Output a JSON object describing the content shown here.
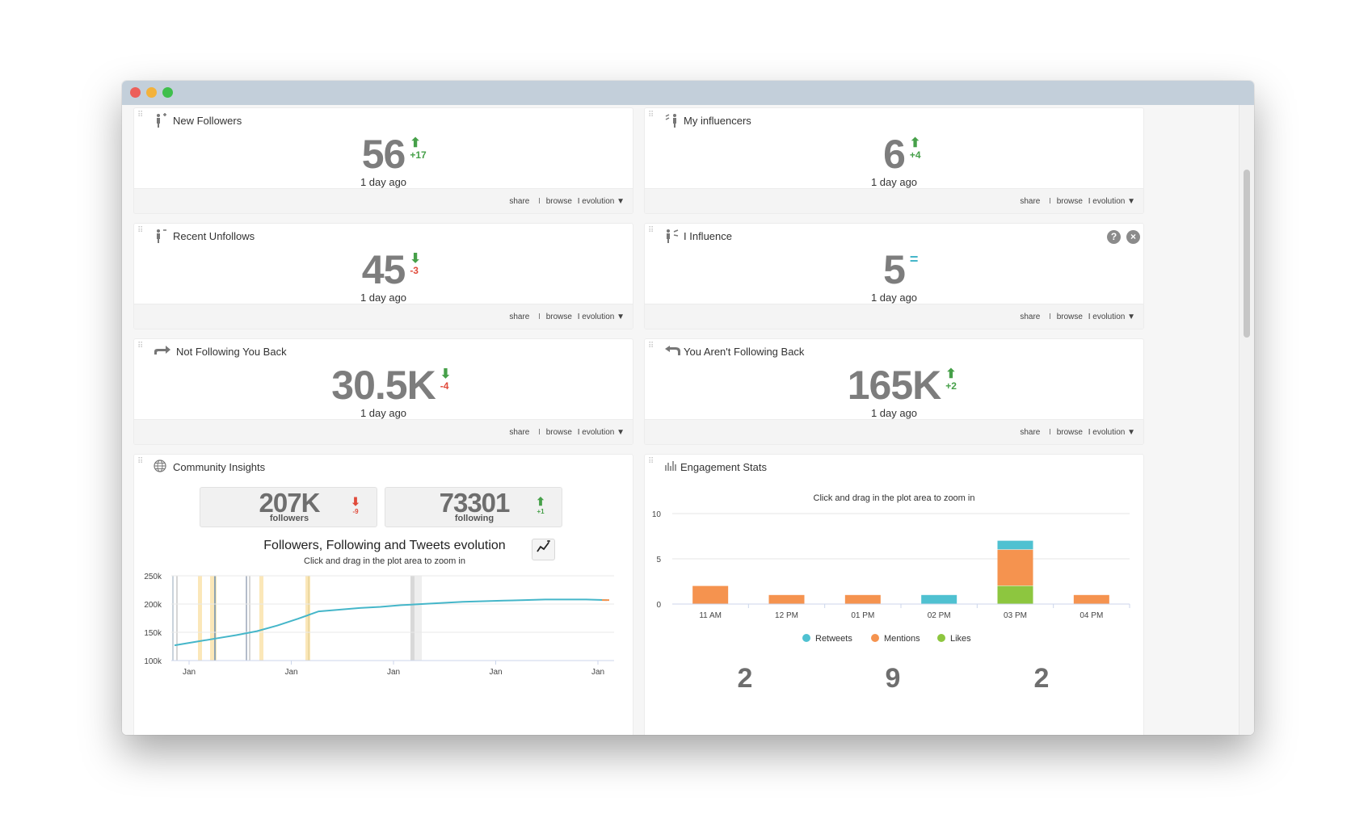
{
  "window": {
    "controls": [
      "close",
      "minimize",
      "zoom"
    ]
  },
  "footer": {
    "share": "share",
    "sep": "I",
    "browse": "browse",
    "evolution": "I evolution ▼"
  },
  "cards": {
    "new_followers": {
      "title": "New Followers",
      "icon": "person-plus-icon",
      "value": "56",
      "delta": "+17",
      "direction": "up",
      "ago": "1 day ago"
    },
    "my_influencers": {
      "title": "My influencers",
      "icon": "influencers-icon",
      "value": "6",
      "delta": "+4",
      "direction": "up",
      "ago": "1 day ago"
    },
    "recent_unfollows": {
      "title": "Recent Unfollows",
      "icon": "person-minus-icon",
      "value": "45",
      "delta": "-3",
      "direction": "down",
      "ago": "1 day ago"
    },
    "i_influence": {
      "title": "I Influence",
      "icon": "influence-icon",
      "value": "5",
      "delta": "=",
      "direction": "equal",
      "ago": "1 day ago",
      "help": "?",
      "close": "×"
    },
    "not_following_back": {
      "title": "Not Following You Back",
      "icon": "share-arrow-icon",
      "value": "30.5K",
      "delta": "-4",
      "direction": "down",
      "ago": "1 day ago"
    },
    "you_not_following_back": {
      "title": "You Aren't Following Back",
      "icon": "return-arrow-icon",
      "value": "165K",
      "delta": "+2",
      "direction": "up",
      "ago": "1 day ago"
    }
  },
  "community": {
    "title": "Community Insights",
    "icon": "globe-icon",
    "followers": {
      "value": "207K",
      "label": "followers",
      "delta": "-9",
      "direction": "down"
    },
    "following": {
      "value": "73301",
      "label": "following",
      "delta": "+1",
      "direction": "up"
    },
    "chart_title": "Followers, Following and Tweets evolution",
    "chart_subtitle": "Click and drag in the plot area to zoom in"
  },
  "engagement": {
    "title": "Engagement Stats",
    "icon": "bar-chart-icon",
    "chart_subtitle": "Click and drag in the plot area to zoom in",
    "bottom_values": [
      "2",
      "9",
      "2"
    ]
  },
  "chart_data": [
    {
      "type": "line",
      "title": "Followers, Following and Tweets evolution",
      "subtitle": "Click and drag in the plot area to zoom in",
      "y_ticks": [
        "250k",
        "200k",
        "150k",
        "100k"
      ],
      "ylim": [
        100000,
        250000
      ],
      "x_ticks": [
        "Jan",
        "Jan",
        "Jan",
        "Jan",
        "Jan"
      ],
      "series": [
        {
          "color": "#45b6c9",
          "values": [
            127000,
            133000,
            139000,
            145000,
            152000,
            162000,
            174000,
            187000,
            190000,
            193000,
            195000,
            198000,
            200000,
            202000,
            204000,
            205000,
            206000,
            207000,
            208000,
            208000,
            208000,
            207000
          ]
        }
      ]
    },
    {
      "type": "bar",
      "stacked": true,
      "subtitle": "Click and drag in the plot area to zoom in",
      "categories": [
        "11 AM",
        "12 PM",
        "01 PM",
        "02 PM",
        "03 PM",
        "04 PM"
      ],
      "y_ticks": [
        "10",
        "5",
        "0"
      ],
      "ylim": [
        0,
        10
      ],
      "legend_position": "bottom",
      "series": [
        {
          "name": "Retweets",
          "color": "#4fc1d1",
          "values": [
            0,
            0,
            0,
            1,
            1,
            0
          ]
        },
        {
          "name": "Mentions",
          "color": "#f5934f",
          "values": [
            2,
            1,
            1,
            0,
            4,
            1
          ]
        },
        {
          "name": "Likes",
          "color": "#8dc63f",
          "values": [
            0,
            0,
            0,
            0,
            2,
            0
          ]
        }
      ]
    }
  ]
}
